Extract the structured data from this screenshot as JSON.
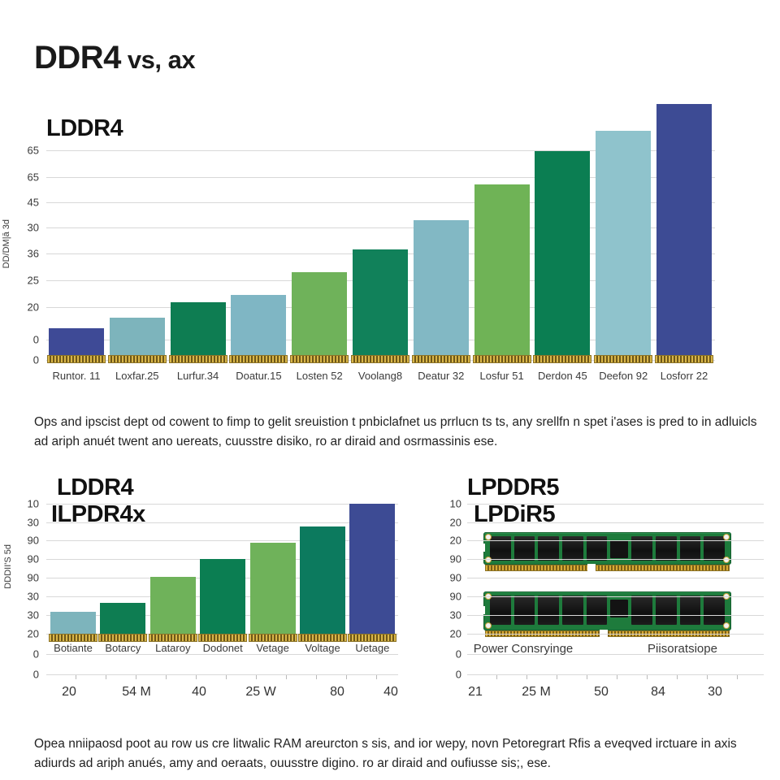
{
  "page_title": {
    "main": "DDR4",
    "suffix": "vs, ax"
  },
  "paragraphs": {
    "top": "Ops and ipscist dept od cowent to fimp to gelit sreuistion t pnbiclafnet us prrlucn ts ts, any srellfn n spet i'ases is pred to in adluicls ad ariph anuét twent ano uereats, cuusstre disiko, ro ar diraid and osrmassinis ese.",
    "bottom": "Opea nniipaosd poot au row us cre litwalic RAM areurcton s sis, and ior wepy, novn Petoregrart Rfis a eveqved irctuare in axis adiurds ad ariph anués, amy and oeraats, ouusstre digino. ro ar diraid and oufiusse sis;, ese."
  },
  "colors": {
    "navy": "#3e4a96",
    "teal": "#7db4bc",
    "teal_light": "#8fc3cc",
    "green_dark": "#0e7d52",
    "green_light": "#6fb25a",
    "gold_base": "#c9a43b",
    "pcb_green": "#1e7b3c",
    "chip_black": "#161616",
    "grid": "#d8d8d8"
  },
  "chart_data": [
    {
      "type": "bar",
      "title": "LDDR4",
      "ylabel": "DD/DM|ā 3d",
      "y_ticks": [
        "65",
        "65",
        "45",
        "30",
        "36",
        "25",
        "20",
        "0",
        "0"
      ],
      "categories": [
        "Runtor. 11",
        "Loxfar.25",
        "Lurfur.34",
        "Doatur.15",
        "Losten 52",
        "Voolang8",
        "Deatur 32",
        "Losfur 51",
        "Derdon 45",
        "Deefon 92",
        "Losforr 22"
      ],
      "values": [
        10.7,
        14.9,
        21.0,
        24.0,
        33.0,
        42.1,
        53.7,
        68.0,
        81.2,
        89.3,
        100.0
      ],
      "bar_colors": [
        "#3e4a96",
        "#7db4bc",
        "#0e7d52",
        "#7fb6c4",
        "#6fb25a",
        "#11815a",
        "#82b8c4",
        "#6fb356",
        "#0b7e52",
        "#8fc3cc",
        "#3d4b94"
      ],
      "ylim": [
        0,
        100
      ],
      "grid": true,
      "legend": null
    },
    {
      "type": "bar",
      "title": "LDDR4",
      "subtitle": "ILPDR4x",
      "ylabel": "DDDII'S 5d",
      "y_ticks": [
        "10",
        "30",
        "90",
        "90",
        "90",
        "30",
        "30",
        "20",
        "0",
        "0"
      ],
      "categories": [
        "Botiante",
        "Botarcy",
        "Lataroy",
        "Dodonet",
        "Vetage",
        "Voltage",
        "Uetage"
      ],
      "values": [
        16.9,
        23.8,
        43.8,
        57.5,
        70.0,
        82.5,
        100.0
      ],
      "bar_colors": [
        "#7db4bc",
        "#0e7d52",
        "#6fb25a",
        "#0b7e52",
        "#6fb25a",
        "#0c7a5e",
        "#3d4b94"
      ],
      "bottom_ticks": [
        "20",
        "54 M",
        "40",
        "25 W",
        "80",
        "40"
      ],
      "ylim": [
        0,
        100
      ],
      "grid": true,
      "legend": null
    },
    {
      "type": "image-panel",
      "title": "LPDDR5",
      "subtitle": "LPDiR5",
      "y_ticks": [
        "10",
        "20",
        "20",
        "90",
        "90",
        "90",
        "30",
        "20",
        "0",
        "0"
      ],
      "categories": [
        "Power Consryinge",
        "Piisoratsiope"
      ],
      "bottom_ticks": [
        "21",
        "25 M",
        "50",
        "84",
        "30"
      ],
      "image_desc": "two green DDR RAM memory modules with black chips and gold pins",
      "grid": true
    }
  ]
}
